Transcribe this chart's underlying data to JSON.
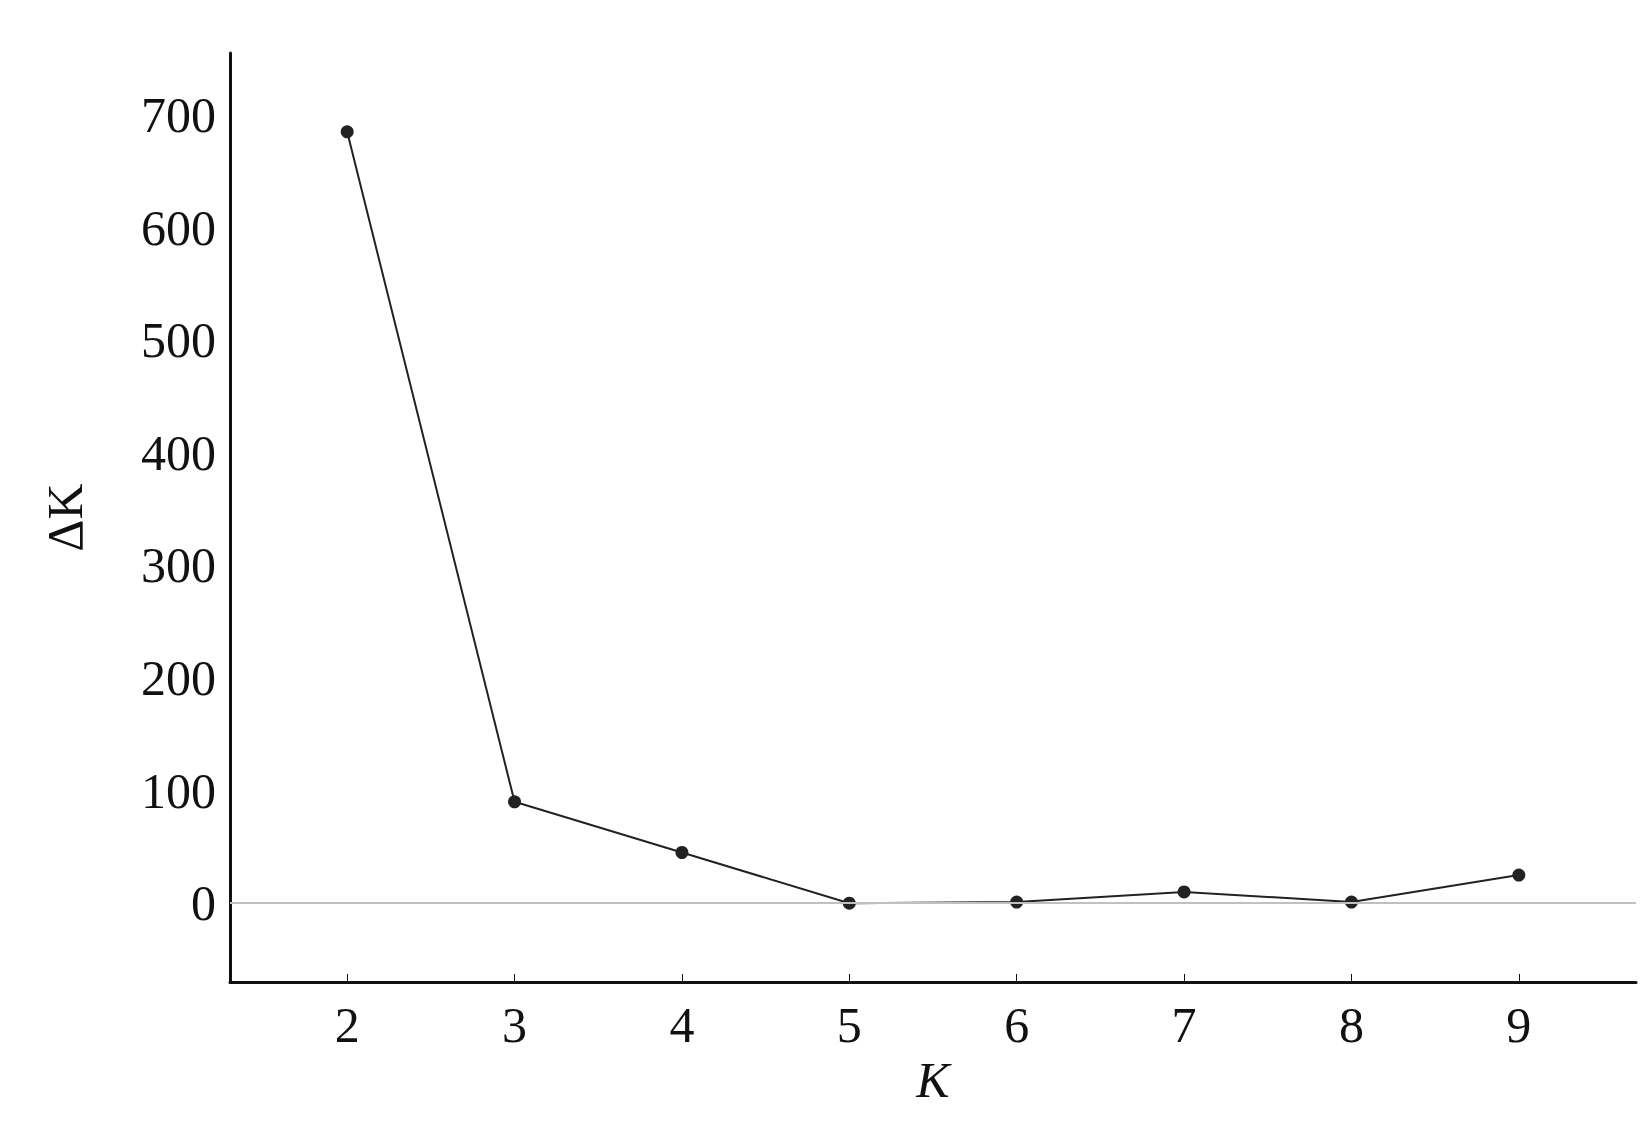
{
  "chart_data": {
    "type": "line",
    "xlabel": "K",
    "ylabel": "ΔK",
    "x": [
      2,
      3,
      4,
      5,
      6,
      7,
      8,
      9
    ],
    "series": [
      {
        "color": "#222222",
        "values": [
          685,
          90,
          45,
          0,
          1,
          10,
          1,
          25
        ]
      }
    ],
    "xlim": [
      1.3,
      9.7
    ],
    "xticks": [
      2,
      3,
      4,
      5,
      6,
      7,
      8,
      9
    ],
    "ylim": [
      -70,
      755
    ],
    "yticks": [
      0,
      100,
      200,
      300,
      400,
      500,
      600,
      700
    ],
    "ref_lines": [
      {
        "axis": "y",
        "value": 0,
        "color": "#c0c0c0"
      }
    ],
    "marker": "circle",
    "line_style": "solid",
    "grid": false
  }
}
